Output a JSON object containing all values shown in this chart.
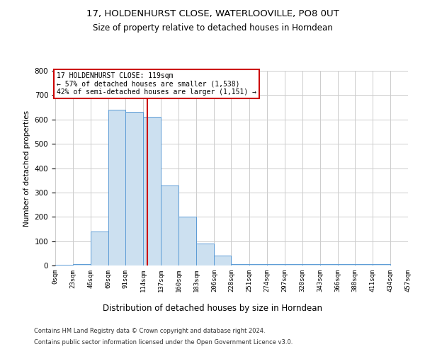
{
  "title": "17, HOLDENHURST CLOSE, WATERLOOVILLE, PO8 0UT",
  "subtitle": "Size of property relative to detached houses in Horndean",
  "xlabel": "Distribution of detached houses by size in Horndean",
  "ylabel": "Number of detached properties",
  "bar_color": "#cce0f0",
  "bar_edge_color": "#5b9bd5",
  "annotation_line_color": "#cc0000",
  "annotation_box_color": "#cc0000",
  "property_size": 119,
  "ylim": [
    0,
    800
  ],
  "yticks": [
    0,
    100,
    200,
    300,
    400,
    500,
    600,
    700,
    800
  ],
  "bin_edges": [
    0,
    23,
    46,
    69,
    91,
    114,
    137,
    160,
    183,
    206,
    228,
    251,
    274,
    297,
    320,
    343,
    366,
    388,
    411,
    434,
    457
  ],
  "bin_labels": [
    "0sqm",
    "23sqm",
    "46sqm",
    "69sqm",
    "91sqm",
    "114sqm",
    "137sqm",
    "160sqm",
    "183sqm",
    "206sqm",
    "228sqm",
    "251sqm",
    "274sqm",
    "297sqm",
    "320sqm",
    "343sqm",
    "366sqm",
    "388sqm",
    "411sqm",
    "434sqm",
    "457sqm"
  ],
  "counts": [
    2,
    5,
    140,
    640,
    630,
    610,
    330,
    200,
    90,
    40,
    5,
    5,
    5,
    5,
    5,
    5,
    5,
    5,
    5,
    0
  ],
  "annotation_text": "17 HOLDENHURST CLOSE: 119sqm\n← 57% of detached houses are smaller (1,538)\n42% of semi-detached houses are larger (1,151) →",
  "footer1": "Contains HM Land Registry data © Crown copyright and database right 2024.",
  "footer2": "Contains public sector information licensed under the Open Government Licence v3.0.",
  "background_color": "#ffffff",
  "grid_color": "#cccccc"
}
